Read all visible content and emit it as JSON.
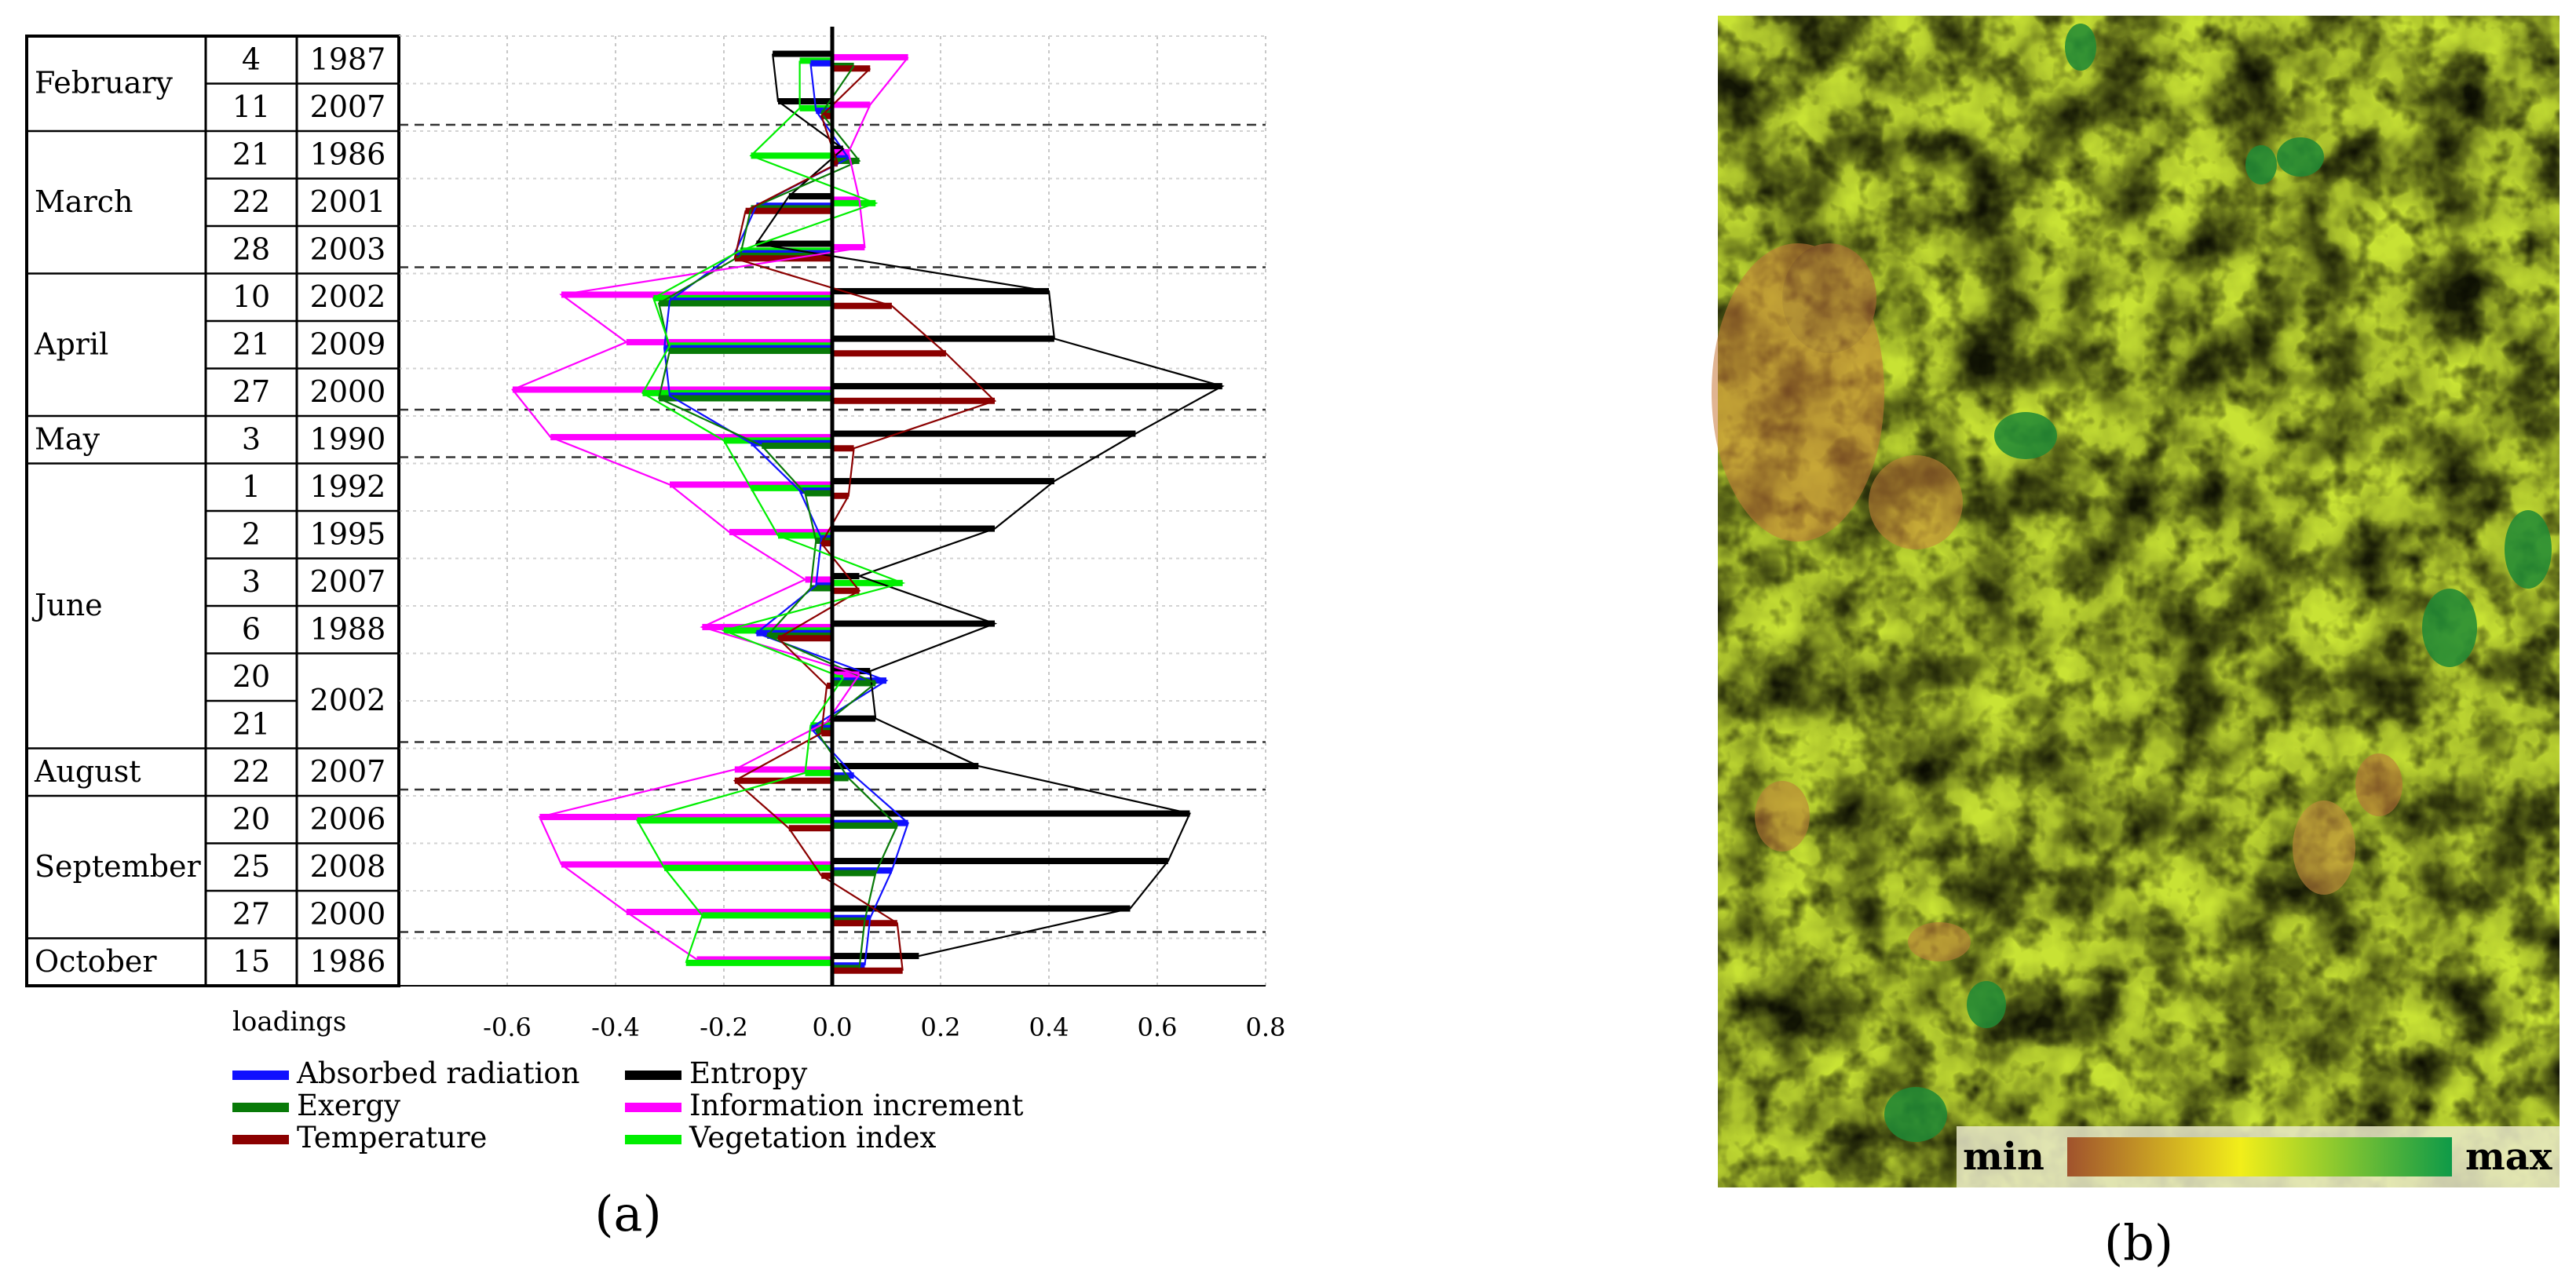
{
  "colors": {
    "absorbed_radiation": "#1010ff",
    "exergy": "#087a08",
    "temperature": "#8b0000",
    "entropy": "#000000",
    "information_increment": "#ff00ff",
    "vegetation_index": "#00ee00"
  },
  "chart_data": [
    {
      "type": "bar",
      "orientation": "horizontal",
      "panel_label": "(a)",
      "xlabel": "loadings",
      "xlim": [
        -0.8,
        0.8
      ],
      "x_ticks": [
        "-0.6",
        "-0.4",
        "-0.2",
        "0.0",
        "0.2",
        "0.4",
        "0.6",
        "0.8"
      ],
      "grid": true,
      "rows": [
        {
          "month": "February",
          "day": "4",
          "year": "1987"
        },
        {
          "month": "",
          "day": "11",
          "year": "2007"
        },
        {
          "month": "March",
          "day": "21",
          "year": "1986"
        },
        {
          "month": "",
          "day": "22",
          "year": "2001"
        },
        {
          "month": "",
          "day": "28",
          "year": "2003"
        },
        {
          "month": "April",
          "day": "10",
          "year": "2002"
        },
        {
          "month": "",
          "day": "21",
          "year": "2009"
        },
        {
          "month": "",
          "day": "27",
          "year": "2000"
        },
        {
          "month": "May",
          "day": "3",
          "year": "1990"
        },
        {
          "month": "June",
          "day": "1",
          "year": "1992"
        },
        {
          "month": "",
          "day": "2",
          "year": "1995"
        },
        {
          "month": "",
          "day": "3",
          "year": "2007"
        },
        {
          "month": "",
          "day": "6",
          "year": "1988"
        },
        {
          "month": "",
          "day": "20",
          "year": "2002"
        },
        {
          "month": "",
          "day": "21",
          "year": "2002"
        },
        {
          "month": "August",
          "day": "22",
          "year": "2007"
        },
        {
          "month": "September",
          "day": "20",
          "year": "2006"
        },
        {
          "month": "",
          "day": "25",
          "year": "2008"
        },
        {
          "month": "",
          "day": "27",
          "year": "2000"
        },
        {
          "month": "October",
          "day": "15",
          "year": "1986"
        }
      ],
      "month_groups": [
        {
          "name": "February",
          "start": 0,
          "count": 2
        },
        {
          "name": "March",
          "start": 2,
          "count": 3
        },
        {
          "name": "April",
          "start": 5,
          "count": 3
        },
        {
          "name": "May",
          "start": 8,
          "count": 1
        },
        {
          "name": "June",
          "start": 9,
          "count": 6
        },
        {
          "name": "August",
          "start": 15,
          "count": 1
        },
        {
          "name": "September",
          "start": 16,
          "count": 3
        },
        {
          "name": "October",
          "start": 19,
          "count": 1
        }
      ],
      "year_merges": [
        {
          "start": 13,
          "count": 2,
          "year": "2002"
        }
      ],
      "legend": [
        "Absorbed radiation",
        "Entropy",
        "Exergy",
        "Information increment",
        "Temperature",
        "Vegetation index"
      ],
      "series": [
        {
          "name": "Absorbed radiation",
          "color_key": "absorbed_radiation",
          "values": [
            -0.04,
            -0.03,
            0.03,
            -0.14,
            -0.18,
            -0.3,
            -0.31,
            -0.3,
            -0.15,
            -0.06,
            -0.02,
            -0.03,
            -0.14,
            0.1,
            -0.04,
            0.04,
            0.14,
            0.11,
            0.07,
            0.06
          ]
        },
        {
          "name": "Entropy",
          "color_key": "entropy",
          "values": [
            -0.11,
            -0.1,
            0.02,
            -0.08,
            -0.14,
            0.4,
            0.41,
            0.72,
            0.56,
            0.41,
            0.3,
            0.05,
            0.3,
            0.07,
            0.08,
            0.27,
            0.66,
            0.62,
            0.55,
            0.16
          ]
        },
        {
          "name": "Exergy",
          "color_key": "exergy",
          "values": [
            0.04,
            -0.02,
            0.05,
            -0.15,
            -0.17,
            -0.32,
            -0.3,
            -0.32,
            -0.13,
            -0.05,
            -0.03,
            -0.04,
            -0.12,
            0.08,
            -0.03,
            0.03,
            0.12,
            0.08,
            0.06,
            0.05
          ]
        },
        {
          "name": "Information increment",
          "color_key": "information_increment",
          "values": [
            0.14,
            0.07,
            0.03,
            0.05,
            0.06,
            -0.5,
            -0.38,
            -0.59,
            -0.52,
            -0.3,
            -0.19,
            -0.05,
            -0.24,
            0.05,
            -0.01,
            -0.18,
            -0.54,
            -0.5,
            -0.38,
            -0.25
          ]
        },
        {
          "name": "Temperature",
          "color_key": "temperature",
          "values": [
            0.07,
            -0.02,
            0.01,
            -0.16,
            -0.18,
            0.11,
            0.21,
            0.3,
            0.04,
            0.03,
            -0.02,
            0.05,
            -0.1,
            -0.01,
            -0.02,
            -0.18,
            -0.08,
            -0.02,
            0.12,
            0.13
          ]
        },
        {
          "name": "Vegetation index",
          "color_key": "vegetation_index",
          "values": [
            -0.06,
            -0.06,
            -0.15,
            0.08,
            -0.17,
            -0.33,
            -0.3,
            -0.35,
            -0.2,
            -0.15,
            -0.1,
            0.13,
            -0.2,
            0.02,
            -0.04,
            -0.05,
            -0.36,
            -0.31,
            -0.24,
            -0.27
          ]
        }
      ]
    },
    {
      "type": "heatmap",
      "panel_label": "(b)",
      "scale_min_label": "min",
      "scale_max_label": "max",
      "colormap": [
        "#a0522d",
        "#e8e020",
        "#2ea84a"
      ]
    }
  ]
}
